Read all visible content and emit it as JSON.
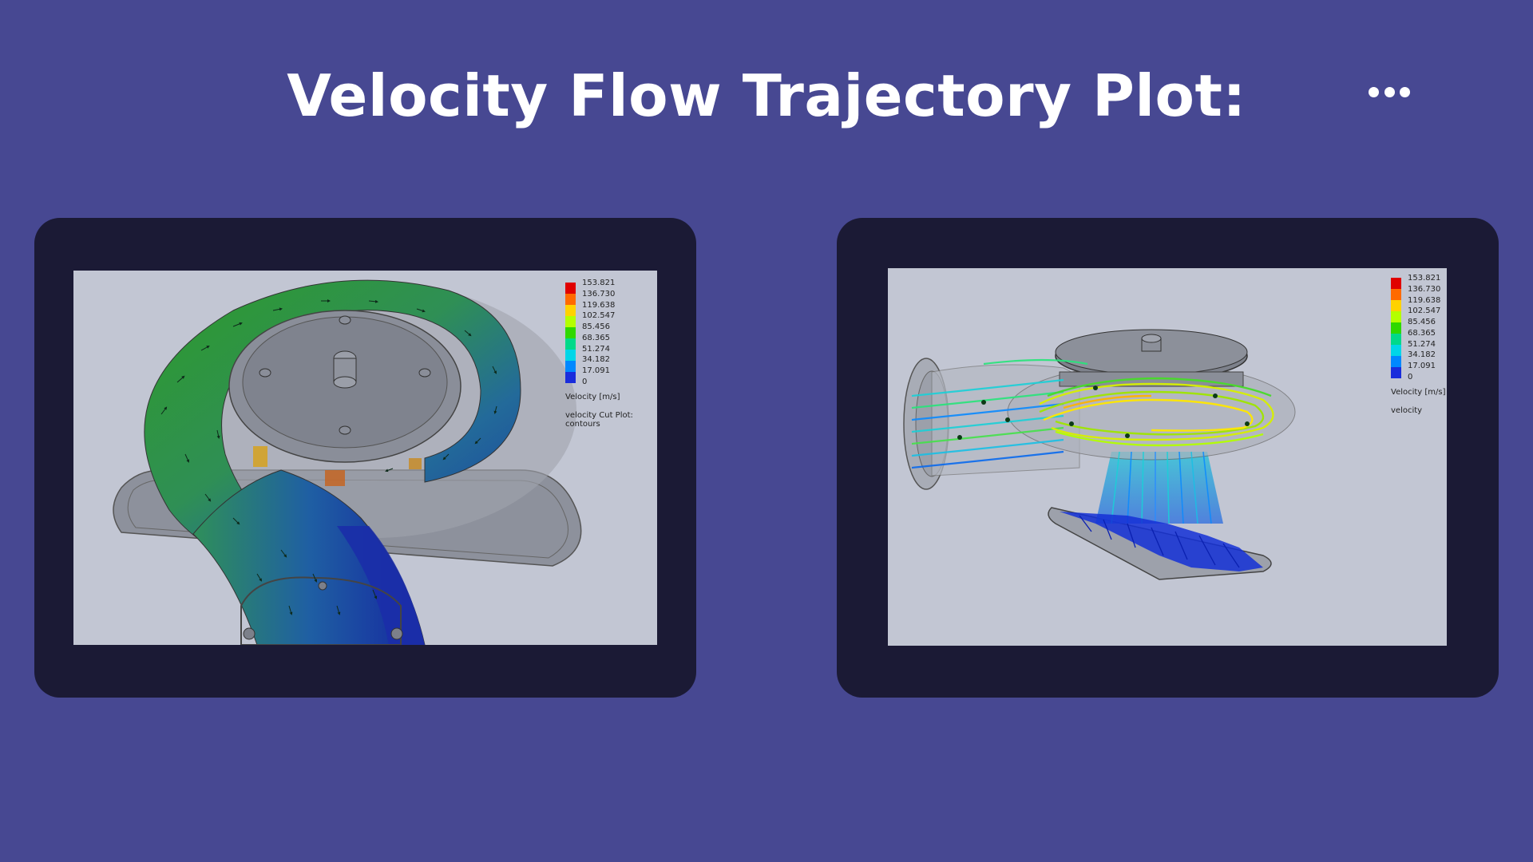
{
  "page": {
    "title": "Velocity Flow Trajectory Plot:",
    "background": "#474892",
    "more_icon": "more-horizontal-icon"
  },
  "colors": {
    "frame": "#1b1a35",
    "viewport": "#c2c6d3"
  },
  "legend": {
    "ticks": [
      "153.821",
      "136.730",
      "119.638",
      "102.547",
      "85.456",
      "68.365",
      "51.274",
      "34.182",
      "17.091",
      "0"
    ],
    "colors": [
      "#e00000",
      "#ff6a00",
      "#ffd200",
      "#b4ff00",
      "#2fd800",
      "#00d98a",
      "#00d6e8",
      "#0088ff",
      "#1a2ddc"
    ]
  },
  "panels": [
    {
      "caption": "Velocity [m/s]",
      "plot_name": "velocity Cut Plot: contours"
    },
    {
      "caption": "Velocity [m/s]",
      "plot_name": "velocity"
    }
  ]
}
